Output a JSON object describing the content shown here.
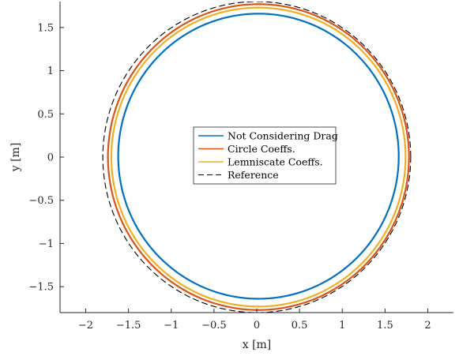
{
  "chart_data": {
    "type": "line",
    "title": "",
    "xlabel": "x [m]",
    "ylabel": "y [m]",
    "xlim": [
      -2.3,
      2.3
    ],
    "ylim": [
      -1.8,
      1.8
    ],
    "xticks": [
      -2,
      -1.5,
      -1,
      -0.5,
      0,
      0.5,
      1,
      1.5,
      2
    ],
    "yticks": [
      -1.5,
      -1,
      -0.5,
      0,
      0.5,
      1,
      1.5
    ],
    "xtick_labels": [
      "−2",
      "−1.5",
      "−1",
      "−0.5",
      "0",
      "0.5",
      "1",
      "1.5",
      "2"
    ],
    "ytick_labels": [
      "−1.5",
      "−1",
      "−0.5",
      "0",
      "0.5",
      "1",
      "1.5"
    ],
    "grid": false,
    "legend_position": "center",
    "series": [
      {
        "name": "Not Considering Drag",
        "color": "#0072BD",
        "style": "solid",
        "shape": "circle",
        "center": [
          0.02,
          0.01
        ],
        "radii": [
          1.64,
          1.65
        ]
      },
      {
        "name": "Circle Coeffs.",
        "color": "#D95319",
        "style": "solid",
        "shape": "circle",
        "center": [
          0.02,
          0.0
        ],
        "radii": [
          1.76,
          1.77
        ]
      },
      {
        "name": "Lemniscate Coeffs.",
        "color": "#EDB120",
        "style": "solid",
        "shape": "circle",
        "center": [
          0.02,
          0.0
        ],
        "radii": [
          1.72,
          1.73
        ]
      },
      {
        "name": "Reference",
        "color": "#000000",
        "style": "dashed",
        "shape": "circle",
        "center": [
          0.0,
          0.0
        ],
        "radii": [
          1.8,
          1.8
        ]
      }
    ]
  }
}
